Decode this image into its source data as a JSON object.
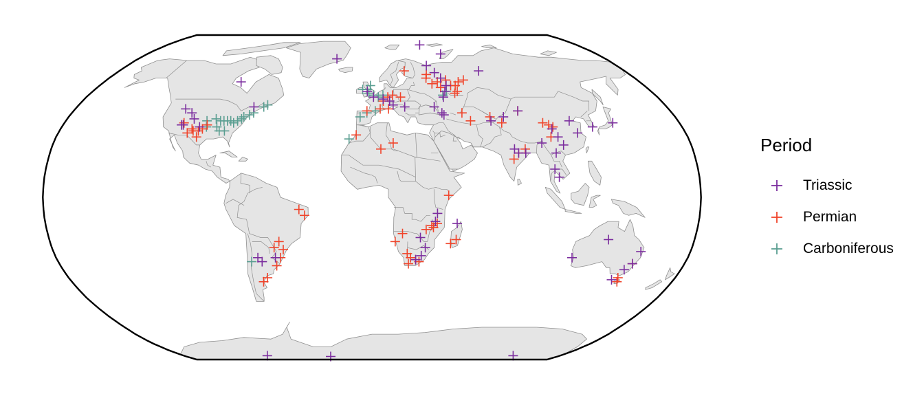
{
  "legend": {
    "title": "Period",
    "items": [
      {
        "label": "Triassic",
        "color": "#7b2d9e",
        "icon": "plus-icon"
      },
      {
        "label": "Permian",
        "color": "#f0442a",
        "icon": "plus-icon"
      },
      {
        "label": "Carboniferous",
        "color": "#5a9e91",
        "icon": "plus-icon"
      }
    ]
  },
  "map": {
    "projection": "Robinson",
    "land_color": "#e5e5e5",
    "border_color": "#8f8f8f",
    "frame_color": "#000000"
  },
  "chart_data": {
    "type": "scatter",
    "title": "",
    "xlabel": "",
    "ylabel": "",
    "legend_position": "right",
    "series": [
      {
        "name": "Triassic",
        "color": "#7b2d9e",
        "points": [
          [
            -88,
            58
          ],
          [
            -113,
            44
          ],
          [
            -108,
            42
          ],
          [
            -105,
            39
          ],
          [
            -111,
            36
          ],
          [
            -100,
            35
          ],
          [
            -72,
            45
          ],
          [
            -110,
            36
          ],
          [
            -65,
            -30
          ],
          [
            -63,
            -32
          ],
          [
            -55,
            -30
          ],
          [
            -3,
            53
          ],
          [
            1,
            50
          ],
          [
            7,
            49
          ],
          [
            11,
            48
          ],
          [
            13,
            46
          ],
          [
            20,
            45
          ],
          [
            42,
            80
          ],
          [
            40,
            67
          ],
          [
            44,
            63
          ],
          [
            47,
            60
          ],
          [
            49,
            56
          ],
          [
            47,
            53
          ],
          [
            45,
            50
          ],
          [
            38,
            45
          ],
          [
            42,
            42
          ],
          [
            43,
            41
          ],
          [
            70,
            38
          ],
          [
            78,
            40
          ],
          [
            88,
            43
          ],
          [
            116,
            38
          ],
          [
            104,
            34
          ],
          [
            106,
            30
          ],
          [
            108,
            26
          ],
          [
            118,
            32
          ],
          [
            128,
            35
          ],
          [
            141,
            37
          ],
          [
            96,
            27
          ],
          [
            80,
            24
          ],
          [
            82,
            22
          ],
          [
            86,
            22
          ],
          [
            103,
            22
          ],
          [
            101,
            14
          ],
          [
            103,
            10
          ],
          [
            36,
            -8
          ],
          [
            35,
            -12
          ],
          [
            47,
            -13
          ],
          [
            27,
            -20
          ],
          [
            30,
            -25
          ],
          [
            28,
            -29
          ],
          [
            25,
            -31
          ],
          [
            132,
            -21
          ],
          [
            152,
            -27
          ],
          [
            150,
            -33
          ],
          [
            147,
            -36
          ],
          [
            143,
            -41
          ],
          [
            114,
            -30
          ],
          [
            76,
            64
          ],
          [
            55,
            74
          ],
          [
            -27,
            71
          ],
          [
            -100,
            -85
          ],
          [
            -40,
            -86
          ],
          [
            135,
            -85
          ]
        ]
      },
      {
        "name": "Permian",
        "color": "#f0442a",
        "points": [
          [
            -110,
            37
          ],
          [
            -104,
            34
          ],
          [
            -100,
            33
          ],
          [
            -98,
            34
          ],
          [
            -96,
            36
          ],
          [
            -103,
            33
          ],
          [
            -106,
            32
          ],
          [
            -100,
            30
          ],
          [
            -37,
            -9
          ],
          [
            -40,
            -6
          ],
          [
            -52,
            -22
          ],
          [
            -55,
            -25
          ],
          [
            -50,
            -26
          ],
          [
            -52,
            -30
          ],
          [
            -55,
            -34
          ],
          [
            -62,
            -40
          ],
          [
            -65,
            -42
          ],
          [
            5,
            44
          ],
          [
            7,
            48
          ],
          [
            10,
            50
          ],
          [
            13,
            51
          ],
          [
            18,
            50
          ],
          [
            10,
            44
          ],
          [
            -3,
            43
          ],
          [
            -9,
            31
          ],
          [
            5,
            24
          ],
          [
            12,
            27
          ],
          [
            38,
            62
          ],
          [
            44,
            58
          ],
          [
            50,
            59
          ],
          [
            52,
            56
          ],
          [
            55,
            56
          ],
          [
            55,
            53
          ],
          [
            53,
            52
          ],
          [
            58,
            58
          ],
          [
            40,
            57
          ],
          [
            37,
            60
          ],
          [
            45,
            55
          ],
          [
            62,
            59
          ],
          [
            70,
            40
          ],
          [
            76,
            37
          ],
          [
            88,
            43
          ],
          [
            100,
            37
          ],
          [
            103,
            36
          ],
          [
            105,
            35
          ],
          [
            102,
            30
          ],
          [
            86,
            24
          ],
          [
            82,
            22
          ],
          [
            79,
            19
          ],
          [
            54,
            42
          ],
          [
            58,
            38
          ],
          [
            42,
            1
          ],
          [
            36,
            -13
          ],
          [
            33,
            -14
          ],
          [
            34,
            -15
          ],
          [
            30,
            -16
          ],
          [
            17,
            -18
          ],
          [
            13,
            -22
          ],
          [
            20,
            -28
          ],
          [
            22,
            -30
          ],
          [
            25,
            -31
          ],
          [
            27,
            -32
          ],
          [
            21,
            -33
          ],
          [
            47,
            -21
          ],
          [
            44,
            -23
          ],
          [
            150,
            -33
          ],
          [
            147,
            -42
          ],
          [
            146,
            -40
          ],
          [
            23,
            64
          ]
        ]
      },
      {
        "name": "Carboniferous",
        "color": "#5a9e91",
        "points": [
          [
            -97,
            38
          ],
          [
            -92,
            39
          ],
          [
            -89,
            38
          ],
          [
            -87,
            38
          ],
          [
            -85,
            38
          ],
          [
            -83,
            38
          ],
          [
            -81,
            37
          ],
          [
            -79,
            38
          ],
          [
            -77,
            39
          ],
          [
            -76,
            40
          ],
          [
            -73,
            41
          ],
          [
            -71,
            42
          ],
          [
            -66,
            45
          ],
          [
            -64,
            46
          ],
          [
            -88,
            33
          ],
          [
            -96,
            35
          ],
          [
            -90,
            35
          ],
          [
            -85,
            33
          ],
          [
            -3,
            54
          ],
          [
            -2,
            52
          ],
          [
            1,
            51
          ],
          [
            4,
            50
          ],
          [
            -6,
            54
          ],
          [
            -1,
            56
          ],
          [
            2,
            43
          ],
          [
            -3,
            42
          ],
          [
            -7,
            40
          ],
          [
            7,
            51
          ],
          [
            -13,
            29
          ],
          [
            45,
            51
          ],
          [
            48,
            53
          ],
          [
            -69,
            -32
          ]
        ]
      }
    ]
  }
}
